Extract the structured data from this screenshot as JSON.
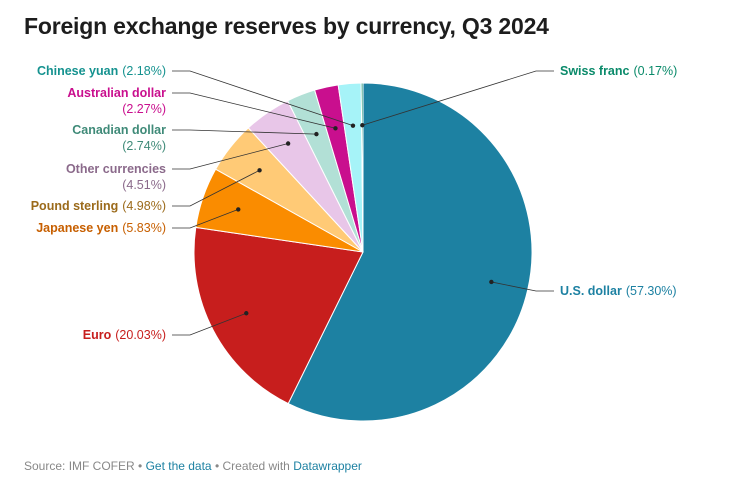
{
  "title": "Foreign exchange reserves by currency, Q3 2024",
  "footer": {
    "source": "Source: IMF COFER",
    "sep1": " • ",
    "get_data": "Get the data",
    "sep2": " • Created with ",
    "tool": "Datawrapper"
  },
  "chart_data": {
    "type": "pie",
    "title": "Foreign exchange reserves by currency, Q3 2024",
    "unit": "%",
    "slices": [
      {
        "name": "U.S. dollar",
        "value": 57.3,
        "label": "(57.30%)",
        "color": "#1d81a2",
        "text_color": "#1d81a2"
      },
      {
        "name": "Euro",
        "value": 20.03,
        "label": "(20.03%)",
        "color": "#c71e1d",
        "text_color": "#c71e1d"
      },
      {
        "name": "Japanese yen",
        "value": 5.83,
        "label": "(5.83%)",
        "color": "#fa8c00",
        "text_color": "#c75f00"
      },
      {
        "name": "Pound sterling",
        "value": 4.98,
        "label": "(4.98%)",
        "color": "#ffca76",
        "text_color": "#9b6a1a"
      },
      {
        "name": "Other currencies",
        "value": 4.51,
        "label": "(4.51%)",
        "color": "#e8c6e8",
        "text_color": "#8b6a8b"
      },
      {
        "name": "Canadian dollar",
        "value": 2.74,
        "label": "(2.74%)",
        "color": "#b2e0d6",
        "text_color": "#3f8a78"
      },
      {
        "name": "Australian dollar",
        "value": 2.27,
        "label": "(2.27%)",
        "color": "#c90f8e",
        "text_color": "#c90f8e"
      },
      {
        "name": "Chinese yuan",
        "value": 2.18,
        "label": "(2.18%)",
        "color": "#a6f3f8",
        "text_color": "#15928f"
      },
      {
        "name": "Swiss franc",
        "value": 0.17,
        "label": "(0.17%)",
        "color": "#0a8a6a",
        "text_color": "#0a8a6a"
      }
    ]
  }
}
